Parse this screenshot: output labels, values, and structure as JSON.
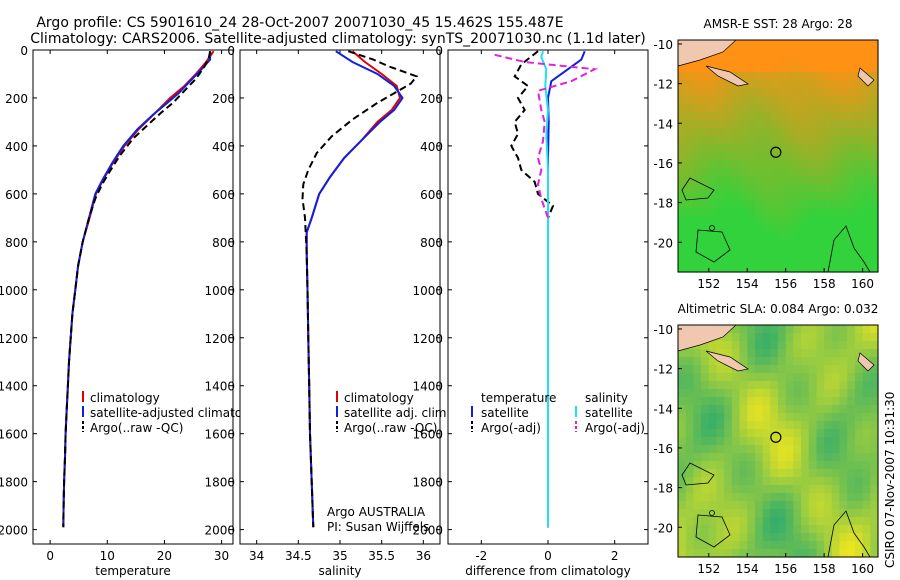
{
  "header": {
    "line1": "Argo profile: CS 5901610_24 28-Oct-2007 20071030_45 15.462S 155.487E",
    "line2": "Climatology: CARS2006. Satellite-adjusted climatology: synTS_20071030.nc (1.1d later)"
  },
  "side_stamp": "CSIRO 07-Nov-2007 10:31:30",
  "colors": {
    "climatology": "#e00000",
    "satellite": "#1020e0",
    "argo": "#000000",
    "diff_satellite": "#20e0f0",
    "diff_argo": "#e020e0",
    "land": "#f0c8b0"
  },
  "chart_data": [
    {
      "id": "temperature",
      "type": "line",
      "xlabel": "temperature",
      "ylabel": "",
      "xlim": [
        -3,
        32
      ],
      "ylim": [
        2060,
        0
      ],
      "xticks": [
        0,
        10,
        20,
        30
      ],
      "yticks": [
        0,
        200,
        400,
        600,
        800,
        1000,
        1200,
        1400,
        1600,
        1800,
        2000
      ],
      "legend": [
        "climatology",
        "satellite-adjusted climatology",
        "Argo(..raw -QC)"
      ],
      "series": [
        {
          "name": "climatology",
          "style": "solid",
          "color": "#e00000",
          "points": [
            [
              28.6,
              5
            ],
            [
              27.3,
              50
            ],
            [
              25.5,
              100
            ],
            [
              23.5,
              150
            ],
            [
              21,
              200
            ],
            [
              18.5,
              260
            ],
            [
              15.5,
              330
            ],
            [
              13,
              400
            ],
            [
              11,
              470
            ],
            [
              9.3,
              540
            ],
            [
              8,
              600
            ],
            [
              6.9,
              700
            ],
            [
              5.7,
              800
            ],
            [
              4.9,
              900
            ],
            [
              4.4,
              1000
            ],
            [
              3.9,
              1100
            ],
            [
              3.6,
              1200
            ],
            [
              3.3,
              1300
            ],
            [
              3.1,
              1400
            ],
            [
              2.9,
              1500
            ],
            [
              2.7,
              1600
            ],
            [
              2.6,
              1700
            ],
            [
              2.45,
              1800
            ],
            [
              2.35,
              1900
            ],
            [
              2.3,
              1990
            ]
          ]
        },
        {
          "name": "satellite-adjusted climatology",
          "style": "solid",
          "color": "#1020e0",
          "points": [
            [
              28.0,
              5
            ],
            [
              28.0,
              40
            ],
            [
              26.5,
              80
            ],
            [
              24.5,
              130
            ],
            [
              22.5,
              180
            ],
            [
              20.5,
              220
            ],
            [
              18,
              270
            ],
            [
              15.3,
              330
            ],
            [
              12.8,
              400
            ],
            [
              10.9,
              470
            ],
            [
              9.2,
              540
            ],
            [
              7.9,
              600
            ],
            [
              6.8,
              700
            ],
            [
              5.7,
              800
            ],
            [
              4.9,
              900
            ],
            [
              4.4,
              1000
            ],
            [
              3.9,
              1100
            ],
            [
              3.6,
              1200
            ],
            [
              3.3,
              1300
            ],
            [
              3.1,
              1400
            ],
            [
              2.9,
              1500
            ],
            [
              2.7,
              1600
            ],
            [
              2.6,
              1700
            ],
            [
              2.45,
              1800
            ],
            [
              2.35,
              1900
            ],
            [
              2.3,
              1990
            ]
          ]
        },
        {
          "name": "Argo(..raw -QC)",
          "style": "dashed",
          "color": "#000000",
          "points": [
            [
              28.0,
              5
            ],
            [
              27.8,
              30
            ],
            [
              27.0,
              70
            ],
            [
              25.5,
              120
            ],
            [
              23.5,
              170
            ],
            [
              21.5,
              220
            ],
            [
              19.5,
              260
            ],
            [
              17.2,
              310
            ],
            [
              14.5,
              370
            ],
            [
              12.2,
              440
            ],
            [
              10.6,
              500
            ],
            [
              9.1,
              560
            ],
            [
              7.9,
              620
            ],
            [
              6.8,
              700
            ],
            [
              5.7,
              800
            ],
            [
              4.9,
              900
            ],
            [
              4.4,
              1000
            ],
            [
              3.9,
              1100
            ],
            [
              3.6,
              1200
            ],
            [
              3.3,
              1300
            ],
            [
              3.1,
              1400
            ],
            [
              2.9,
              1500
            ],
            [
              2.7,
              1600
            ],
            [
              2.6,
              1700
            ],
            [
              2.45,
              1800
            ],
            [
              2.35,
              1900
            ],
            [
              2.3,
              1990
            ]
          ]
        }
      ]
    },
    {
      "id": "salinity",
      "type": "line",
      "xlabel": "salinity",
      "ylabel": "",
      "xlim": [
        33.8,
        36.2
      ],
      "ylim": [
        2060,
        0
      ],
      "xticks": [
        34,
        34.5,
        35,
        35.5,
        36
      ],
      "yticks": [
        0,
        200,
        400,
        600,
        800,
        1000,
        1200,
        1400,
        1600,
        1800,
        2000
      ],
      "legend": [
        "climatology",
        "satellite adj. clim.",
        "Argo(..raw -QC)"
      ],
      "annotation": [
        "Argo AUSTRALIA",
        "PI: Susan Wijffels"
      ],
      "series": [
        {
          "name": "climatology",
          "style": "solid",
          "color": "#e00000",
          "points": [
            [
              35.15,
              5
            ],
            [
              35.3,
              50
            ],
            [
              35.5,
              100
            ],
            [
              35.68,
              150
            ],
            [
              35.72,
              200
            ],
            [
              35.62,
              250
            ],
            [
              35.45,
              300
            ],
            [
              35.25,
              380
            ],
            [
              35.05,
              450
            ],
            [
              34.88,
              530
            ],
            [
              34.75,
              600
            ],
            [
              34.66,
              700
            ],
            [
              34.6,
              760
            ],
            [
              34.6,
              850
            ],
            [
              34.61,
              1000
            ],
            [
              34.62,
              1200
            ],
            [
              34.63,
              1400
            ],
            [
              34.64,
              1600
            ],
            [
              34.66,
              1800
            ],
            [
              34.68,
              1990
            ]
          ]
        },
        {
          "name": "satellite adj. clim.",
          "style": "solid",
          "color": "#1020e0",
          "points": [
            [
              34.95,
              5
            ],
            [
              35.15,
              50
            ],
            [
              35.45,
              100
            ],
            [
              35.65,
              150
            ],
            [
              35.75,
              200
            ],
            [
              35.65,
              250
            ],
            [
              35.48,
              300
            ],
            [
              35.25,
              380
            ],
            [
              35.05,
              450
            ],
            [
              34.88,
              530
            ],
            [
              34.75,
              600
            ],
            [
              34.66,
              700
            ],
            [
              34.6,
              760
            ],
            [
              34.6,
              850
            ],
            [
              34.61,
              1000
            ],
            [
              34.62,
              1200
            ],
            [
              34.63,
              1400
            ],
            [
              34.64,
              1600
            ],
            [
              34.66,
              1800
            ],
            [
              34.68,
              1990
            ]
          ]
        },
        {
          "name": "Argo(..raw -QC)",
          "style": "dashed",
          "color": "#000000",
          "points": [
            [
              35.1,
              5
            ],
            [
              35.4,
              40
            ],
            [
              35.6,
              70
            ],
            [
              35.92,
              110
            ],
            [
              35.85,
              140
            ],
            [
              35.65,
              180
            ],
            [
              35.45,
              220
            ],
            [
              35.15,
              290
            ],
            [
              34.9,
              360
            ],
            [
              34.72,
              430
            ],
            [
              34.62,
              500
            ],
            [
              34.56,
              560
            ],
            [
              34.55,
              620
            ],
            [
              34.58,
              700
            ],
            [
              34.6,
              850
            ],
            [
              34.61,
              1000
            ],
            [
              34.62,
              1200
            ],
            [
              34.63,
              1400
            ],
            [
              34.64,
              1600
            ],
            [
              34.66,
              1800
            ],
            [
              34.68,
              1990
            ]
          ]
        }
      ]
    },
    {
      "id": "difference",
      "type": "line",
      "xlabel": "difference from climatology",
      "ylabel": "",
      "xlim": [
        -3,
        3
      ],
      "ylim": [
        2060,
        0
      ],
      "xticks": [
        -2,
        0,
        2
      ],
      "yticks": [
        0,
        200,
        400,
        600,
        800,
        1000,
        1200,
        1400,
        1600,
        1800,
        2000
      ],
      "legend_groups": [
        {
          "heading": "temperature",
          "items": [
            "satellite",
            "Argo(-adj)"
          ]
        },
        {
          "heading": "salinity",
          "items": [
            "satellite",
            "Argo(-adj)"
          ]
        }
      ],
      "series": [
        {
          "name": "temperature satellite",
          "style": "solid",
          "color": "#1020e0",
          "points": [
            [
              1.1,
              5
            ],
            [
              1.0,
              40
            ],
            [
              0.6,
              80
            ],
            [
              0.1,
              130
            ],
            [
              0.0,
              200
            ],
            [
              0.02,
              300
            ],
            [
              0.0,
              450
            ],
            [
              0.0,
              700
            ],
            [
              0.0,
              1000
            ],
            [
              0.0,
              1990
            ]
          ]
        },
        {
          "name": "temperature Argo(-adj)",
          "style": "dashed",
          "color": "#000000",
          "points": [
            [
              -0.3,
              5
            ],
            [
              -0.8,
              60
            ],
            [
              -1.0,
              110
            ],
            [
              -0.6,
              150
            ],
            [
              -0.9,
              200
            ],
            [
              -0.7,
              250
            ],
            [
              -1.0,
              300
            ],
            [
              -0.9,
              350
            ],
            [
              -1.1,
              400
            ],
            [
              -0.9,
              450
            ],
            [
              -0.8,
              500
            ],
            [
              -0.4,
              550
            ],
            [
              -0.3,
              600
            ],
            [
              0.15,
              650
            ],
            [
              0.0,
              700
            ],
            [
              0.0,
              900
            ],
            [
              0.0,
              1990
            ]
          ]
        },
        {
          "name": "salinity satellite",
          "style": "solid",
          "color": "#20e0f0",
          "points": [
            [
              -0.15,
              5
            ],
            [
              -0.2,
              30
            ],
            [
              -0.05,
              80
            ],
            [
              -0.08,
              150
            ],
            [
              0.0,
              250
            ],
            [
              -0.05,
              350
            ],
            [
              0.0,
              500
            ],
            [
              0.0,
              700
            ],
            [
              0.0,
              1000
            ],
            [
              0.0,
              1990
            ]
          ]
        },
        {
          "name": "salinity Argo(-adj)",
          "style": "dashed",
          "color": "#e020e0",
          "points": [
            [
              -1.6,
              20
            ],
            [
              -0.7,
              50
            ],
            [
              1.4,
              80
            ],
            [
              0.7,
              130
            ],
            [
              -0.3,
              170
            ],
            [
              -0.2,
              250
            ],
            [
              -0.1,
              300
            ],
            [
              -0.15,
              380
            ],
            [
              -0.3,
              450
            ],
            [
              -0.2,
              500
            ],
            [
              -0.3,
              560
            ],
            [
              -0.2,
              620
            ],
            [
              0.0,
              700
            ]
          ]
        }
      ]
    },
    {
      "id": "sst_map",
      "type": "heatmap",
      "title": "AMSR-E SST: 28 Argo: 28",
      "xticks": [
        152,
        154,
        156,
        158,
        160
      ],
      "yticks": [
        -10,
        -12,
        -14,
        -16,
        -18,
        -20
      ],
      "xlim": [
        150.4,
        160.8
      ],
      "ylim": [
        -21.5,
        -9.8
      ],
      "argo_position": [
        155.487,
        -15.462
      ]
    },
    {
      "id": "sla_map",
      "type": "heatmap",
      "title": "Altimetric SLA: 0.084 Argo: 0.032",
      "xticks": [
        152,
        154,
        156,
        158,
        160
      ],
      "yticks": [
        -10,
        -12,
        -14,
        -16,
        -18,
        -20
      ],
      "xlim": [
        150.4,
        160.8
      ],
      "ylim": [
        -21.5,
        -9.8
      ],
      "argo_position": [
        155.487,
        -15.462
      ]
    }
  ]
}
